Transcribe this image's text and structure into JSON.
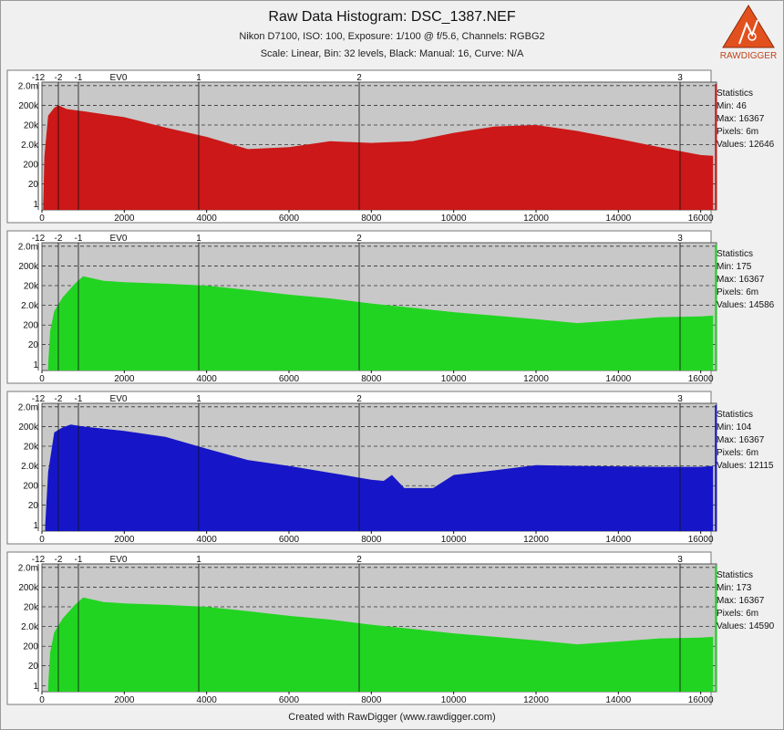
{
  "header": {
    "title": "Raw Data Histogram: DSC_1387.NEF",
    "subtitle1": "Nikon D7100, ISO: 100, Exposure: 1/100 @ f/5.6, Channels: RGBG2",
    "subtitle2": "Scale: Linear, Bin: 32 levels, Black: Manual: 16, Curve: N/A",
    "logo_text": "RAWDIGGER"
  },
  "footer": "Created with RawDigger (www.rawdigger.com)",
  "colors": {
    "plot_bg": "#c8c8c8",
    "red": "#cc1818",
    "green": "#22d422",
    "blue": "#1616c8",
    "logo": "#e2501e"
  },
  "chart_data": [
    {
      "type": "area",
      "channel": "R",
      "color": "#cc1818",
      "x_ticks": [
        0,
        2000,
        4000,
        6000,
        8000,
        10000,
        12000,
        14000,
        16000
      ],
      "y_ticks": [
        "1",
        "20",
        "200",
        "2.0k",
        "20k",
        "200k",
        "2.0m"
      ],
      "ev_labels": [
        "-12",
        "-2",
        "-1",
        "EV0",
        "1",
        "2",
        "3"
      ],
      "xlim": [
        0,
        16384
      ],
      "x": [
        30,
        60,
        150,
        300,
        400,
        600,
        1000,
        2000,
        3000,
        4000,
        5000,
        6000,
        7000,
        8000,
        9000,
        10000,
        11000,
        12000,
        13000,
        14000,
        15000,
        16000,
        16300
      ],
      "y": [
        1,
        500,
        60000,
        150000,
        200000,
        130000,
        100000,
        50000,
        15000,
        5000,
        1200,
        1500,
        3000,
        2500,
        3000,
        8000,
        17000,
        20000,
        10000,
        4000,
        1500,
        600,
        550
      ],
      "stats": {
        "title": "Statistics",
        "min": "Min: 46",
        "max": "Max: 16367",
        "pixels": "Pixels: 6m",
        "values": "Values: 12646"
      }
    },
    {
      "type": "area",
      "channel": "G",
      "color": "#22d422",
      "x_ticks": [
        0,
        2000,
        4000,
        6000,
        8000,
        10000,
        12000,
        14000,
        16000
      ],
      "y_ticks": [
        "1",
        "20",
        "200",
        "2.0k",
        "20k",
        "200k",
        "2.0m"
      ],
      "ev_labels": [
        "-12",
        "-2",
        "-1",
        "EV0",
        "1",
        "2",
        "3"
      ],
      "xlim": [
        0,
        16384
      ],
      "x": [
        150,
        200,
        300,
        500,
        800,
        1000,
        1500,
        2000,
        3000,
        4000,
        5000,
        6000,
        7000,
        8000,
        9000,
        10000,
        11000,
        12000,
        13000,
        14000,
        15000,
        16000,
        16300
      ],
      "y": [
        1,
        100,
        1000,
        5000,
        25000,
        60000,
        35000,
        30000,
        25000,
        20000,
        12000,
        7000,
        4500,
        2500,
        1500,
        900,
        600,
        400,
        250,
        350,
        500,
        550,
        600
      ],
      "stats": {
        "title": "Statistics",
        "min": "Min: 175",
        "max": "Max: 16367",
        "pixels": "Pixels: 6m",
        "values": "Values: 14586"
      }
    },
    {
      "type": "area",
      "channel": "B",
      "color": "#1616c8",
      "x_ticks": [
        0,
        2000,
        4000,
        6000,
        8000,
        10000,
        12000,
        14000,
        16000
      ],
      "y_ticks": [
        "1",
        "20",
        "200",
        "2.0k",
        "20k",
        "200k",
        "2.0m"
      ],
      "ev_labels": [
        "-12",
        "-2",
        "-1",
        "EV0",
        "1",
        "2",
        "3"
      ],
      "xlim": [
        0,
        16384
      ],
      "x": [
        80,
        150,
        300,
        500,
        700,
        1000,
        2000,
        3000,
        4000,
        5000,
        6000,
        7000,
        8000,
        8300,
        8500,
        8800,
        9500,
        10000,
        11000,
        12000,
        13000,
        14000,
        15000,
        16000,
        16300
      ],
      "y": [
        1,
        1000,
        100000,
        180000,
        250000,
        200000,
        120000,
        60000,
        15000,
        4000,
        2000,
        900,
        400,
        350,
        700,
        150,
        150,
        700,
        1200,
        2200,
        2000,
        1900,
        1800,
        1800,
        2000
      ],
      "stats": {
        "title": "Statistics",
        "min": "Min: 104",
        "max": "Max: 16367",
        "pixels": "Pixels: 6m",
        "values": "Values: 12115"
      }
    },
    {
      "type": "area",
      "channel": "G2",
      "color": "#22d422",
      "x_ticks": [
        0,
        2000,
        4000,
        6000,
        8000,
        10000,
        12000,
        14000,
        16000
      ],
      "y_ticks": [
        "1",
        "20",
        "200",
        "2.0k",
        "20k",
        "200k",
        "2.0m"
      ],
      "ev_labels": [
        "-12",
        "-2",
        "-1",
        "EV0",
        "1",
        "2",
        "3"
      ],
      "xlim": [
        0,
        16384
      ],
      "x": [
        150,
        200,
        300,
        500,
        800,
        1000,
        1500,
        2000,
        3000,
        4000,
        5000,
        6000,
        7000,
        8000,
        9000,
        10000,
        11000,
        12000,
        13000,
        14000,
        15000,
        16000,
        16300
      ],
      "y": [
        1,
        100,
        1000,
        5000,
        25000,
        60000,
        35000,
        30000,
        25000,
        20000,
        12000,
        7000,
        4500,
        2500,
        1500,
        900,
        600,
        400,
        250,
        350,
        500,
        550,
        600
      ],
      "stats": {
        "title": "Statistics",
        "min": "Min: 173",
        "max": "Max: 16367",
        "pixels": "Pixels: 6m",
        "values": "Values: 14590"
      }
    }
  ]
}
